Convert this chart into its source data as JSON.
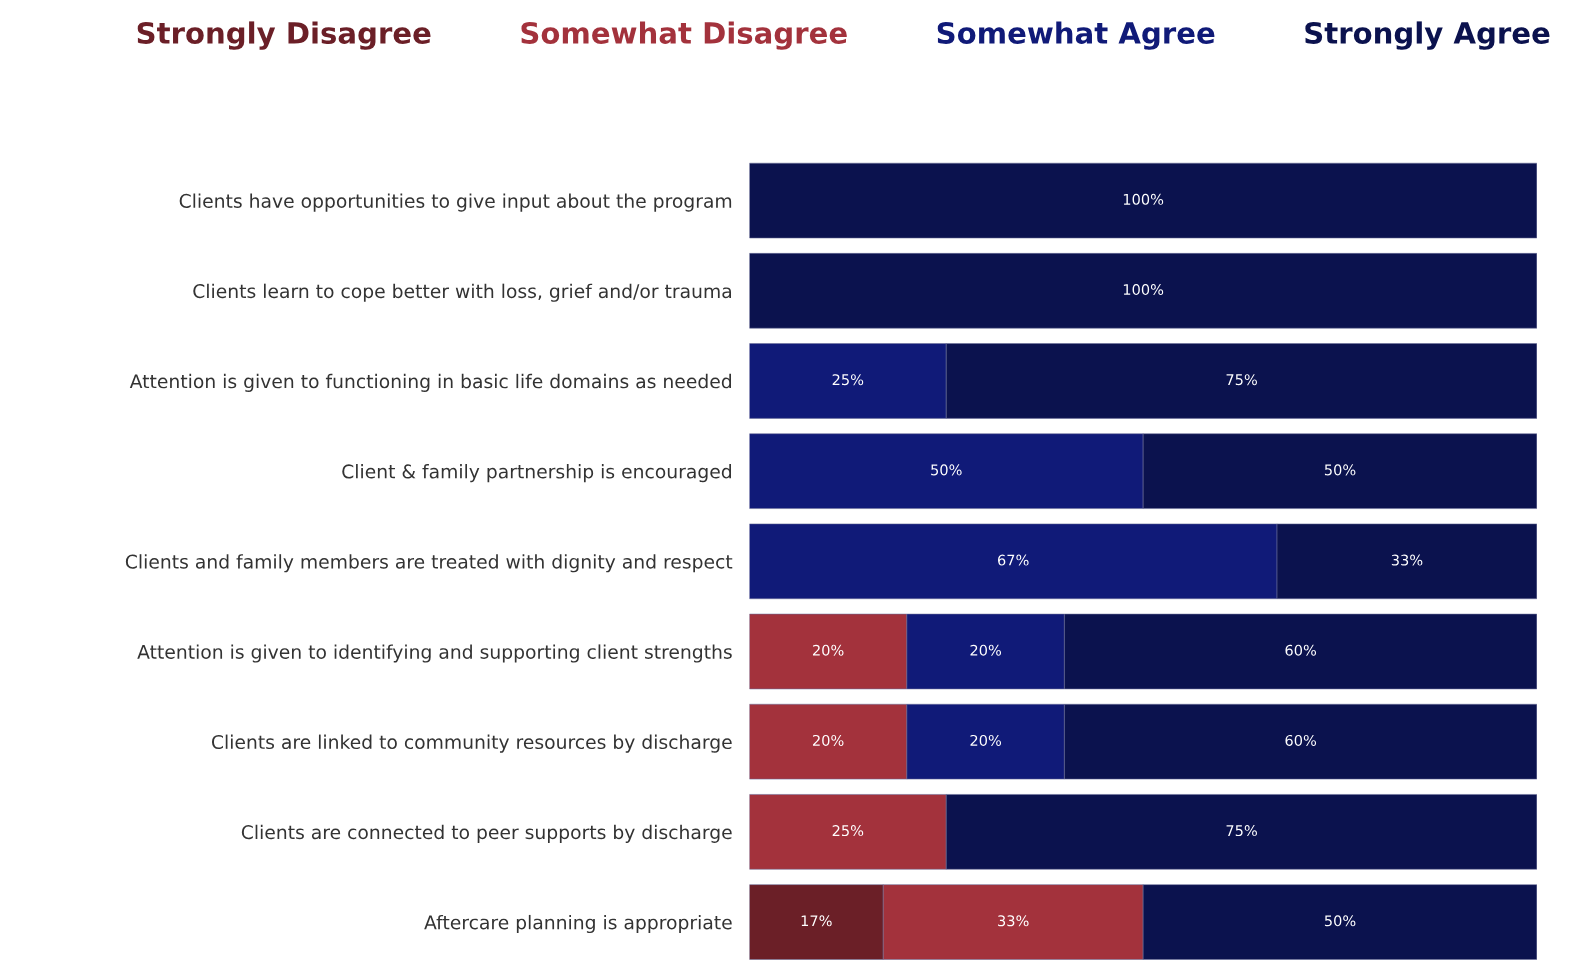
{
  "chart_data": {
    "type": "bar",
    "orientation": "horizontal",
    "stacked": true,
    "tick_labels": "y",
    "legend": "top",
    "categories": [
      "Clients have opportunities to give input about the program",
      "Clients learn to cope better with loss, grief and/or trauma",
      "Attention is given to functioning in basic life domains as needed",
      "Client & family partnership is encouraged",
      "Clients and family members are treated with dignity and respect",
      "Attention is given to identifying and supporting client strengths",
      "Clients are linked to community resources by discharge",
      "Clients are connected to peer supports by discharge",
      "Aftercare planning is appropriate"
    ],
    "series": [
      {
        "name": "Strongly Disagree",
        "color": "#6b1f27",
        "values": [
          null,
          null,
          null,
          null,
          null,
          null,
          null,
          null,
          17
        ],
        "value_labels": [
          null,
          null,
          null,
          null,
          null,
          null,
          null,
          null,
          "17%"
        ]
      },
      {
        "name": "Somewhat Disagree",
        "color": "#a3323c",
        "values": [
          null,
          null,
          null,
          null,
          null,
          20,
          20,
          25,
          33
        ],
        "value_labels": [
          null,
          null,
          null,
          null,
          null,
          "20%",
          "20%",
          "25%",
          "33%"
        ]
      },
      {
        "name": "Somewhat Agree",
        "color": "#101a78",
        "values": [
          null,
          null,
          25,
          50,
          67,
          20,
          20,
          null,
          null
        ],
        "value_labels": [
          null,
          null,
          "25%",
          "50%",
          "67%",
          "20%",
          "20%",
          null,
          null
        ]
      },
      {
        "name": "Strongly Agree",
        "color": "#0b124e",
        "values": [
          100,
          100,
          75,
          50,
          33,
          60,
          60,
          75,
          50
        ],
        "value_labels": [
          "100%",
          "100%",
          "75%",
          "50%",
          "33%",
          "60%",
          "60%",
          "75%",
          "50%"
        ]
      }
    ]
  }
}
